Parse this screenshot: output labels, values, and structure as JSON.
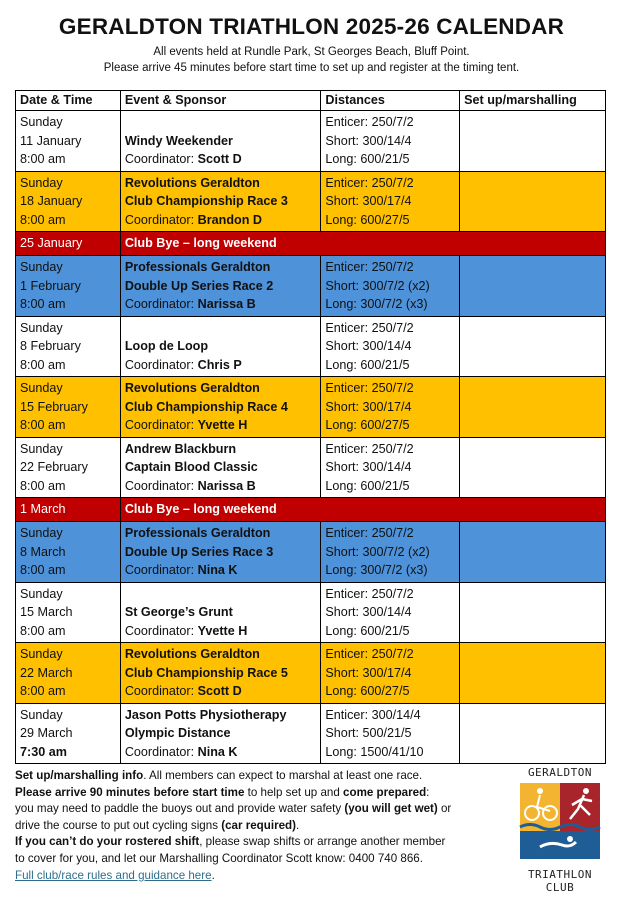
{
  "title": "GERALDTON TRIATHLON 2025-26 CALENDAR",
  "subtitle_lines": [
    "All events held at Rundle Park, St Georges Beach, Bluff Point.",
    "Please arrive 45 minutes before start time to set up and register at the timing tent."
  ],
  "colors": {
    "club_championship": "#FFC000",
    "double_up": "#4E92D9",
    "bye": "#C00000"
  },
  "table": {
    "headers": [
      "Date & Time",
      "Event & Sponsor",
      "Distances",
      "Set up/marshalling"
    ],
    "rows": [
      {
        "style": "white",
        "date": [
          "Sunday",
          "11 January",
          "8:00 am"
        ],
        "event": [
          "",
          "Windy Weekender"
        ],
        "coordinator": "Scott D",
        "distances": [
          "Enticer: 250/7/2",
          "Short: 300/14/4",
          "Long: 600/21/5"
        ],
        "marshal": ""
      },
      {
        "style": "yellow",
        "date": [
          "Sunday",
          "18 January",
          "8:00 am"
        ],
        "event": [
          "Revolutions Geraldton",
          "Club Championship Race 3"
        ],
        "coordinator": "Brandon D",
        "distances": [
          "Enticer: 250/7/2",
          "Short: 300/17/4",
          "Long: 600/27/5"
        ],
        "marshal": ""
      },
      {
        "style": "bye",
        "date": [
          "25 January"
        ],
        "event": [
          "Club Bye – long weekend"
        ]
      },
      {
        "style": "blue",
        "date": [
          "Sunday",
          "1 February",
          "8:00 am"
        ],
        "event": [
          "Professionals Geraldton",
          "Double Up Series Race 2"
        ],
        "coordinator": "Narissa B",
        "distances": [
          "Enticer: 250/7/2",
          "Short: 300/7/2 (x2)",
          "Long: 300/7/2 (x3)"
        ],
        "marshal": ""
      },
      {
        "style": "white",
        "date": [
          "Sunday",
          "8 February",
          "8:00 am"
        ],
        "event": [
          "",
          "Loop de Loop"
        ],
        "coordinator": "Chris P",
        "distances": [
          "Enticer: 250/7/2",
          "Short: 300/14/4",
          "Long: 600/21/5"
        ],
        "marshal": ""
      },
      {
        "style": "yellow",
        "date": [
          "Sunday",
          "15 February",
          "8:00 am"
        ],
        "event": [
          "Revolutions Geraldton",
          "Club Championship Race 4"
        ],
        "coordinator": "Yvette H",
        "distances": [
          "Enticer: 250/7/2",
          "Short: 300/17/4",
          "Long: 600/27/5"
        ],
        "marshal": ""
      },
      {
        "style": "white",
        "date": [
          "Sunday",
          "22 February",
          "8:00 am"
        ],
        "event": [
          "Andrew Blackburn",
          "Captain Blood Classic"
        ],
        "coordinator": "Narissa B",
        "distances": [
          "Enticer: 250/7/2",
          "Short: 300/14/4",
          "Long: 600/21/5"
        ],
        "marshal": ""
      },
      {
        "style": "bye",
        "date": [
          "1 March"
        ],
        "event": [
          "Club Bye – long weekend"
        ]
      },
      {
        "style": "blue",
        "date": [
          "Sunday",
          "8 March",
          "8:00 am"
        ],
        "event": [
          "Professionals Geraldton",
          "Double Up Series Race 3"
        ],
        "coordinator": "Nina K",
        "distances": [
          "Enticer: 250/7/2",
          "Short: 300/7/2 (x2)",
          "Long: 300/7/2 (x3)"
        ],
        "marshal": ""
      },
      {
        "style": "white",
        "date": [
          "Sunday",
          "15 March",
          "8:00 am"
        ],
        "event": [
          "",
          "St George’s Grunt"
        ],
        "coordinator": "Yvette H",
        "distances": [
          "Enticer: 250/7/2",
          "Short: 300/14/4",
          "Long: 600/21/5"
        ],
        "marshal": ""
      },
      {
        "style": "yellow",
        "date": [
          "Sunday",
          "22 March",
          "8:00 am"
        ],
        "event": [
          "Revolutions Geraldton",
          "Club Championship Race 5"
        ],
        "coordinator": "Scott D",
        "distances": [
          "Enticer: 250/7/2",
          "Short: 300/17/4",
          "Long: 600/27/5"
        ],
        "marshal": ""
      },
      {
        "style": "white",
        "date": [
          "Sunday",
          "29 March",
          "7:30 am"
        ],
        "time_bold": true,
        "event": [
          "Jason Potts Physiotherapy",
          "Olympic Distance"
        ],
        "coordinator": "Nina K",
        "distances": [
          "Enticer: 300/14/4",
          "Short: 500/21/5",
          "Long: 1500/41/10"
        ],
        "marshal": ""
      }
    ],
    "coordinator_label": "Coordinator: "
  },
  "footer": {
    "p1_bold": "Set up/marshalling info",
    "p1": ". All members can expect to marshal at least one race.",
    "p2_bold": "Please arrive 90 minutes before start time",
    "p2": " to help set up and ",
    "p2_bold2": "come prepared",
    "p2_end": ":",
    "p3": "you may need to paddle the buoys out and provide water safety ",
    "p3_bold": "(you will get wet)",
    "p3_end": " or",
    "p4": "drive the course to put out cycling signs ",
    "p4_bold": "(car required)",
    "p4_end": ".",
    "p5_bold": "If you can’t do your rostered shift",
    "p5": ", please swap shifts or arrange another member",
    "p6": "to cover for you, and let our Marshalling Coordinator Scott know: 0400 740 866.",
    "link": "Full club/race rules and guidance here",
    "link_end": "."
  },
  "logo": {
    "top": "GERALDTON",
    "bottom1": "TRIATHLON",
    "bottom2": "CLUB"
  }
}
